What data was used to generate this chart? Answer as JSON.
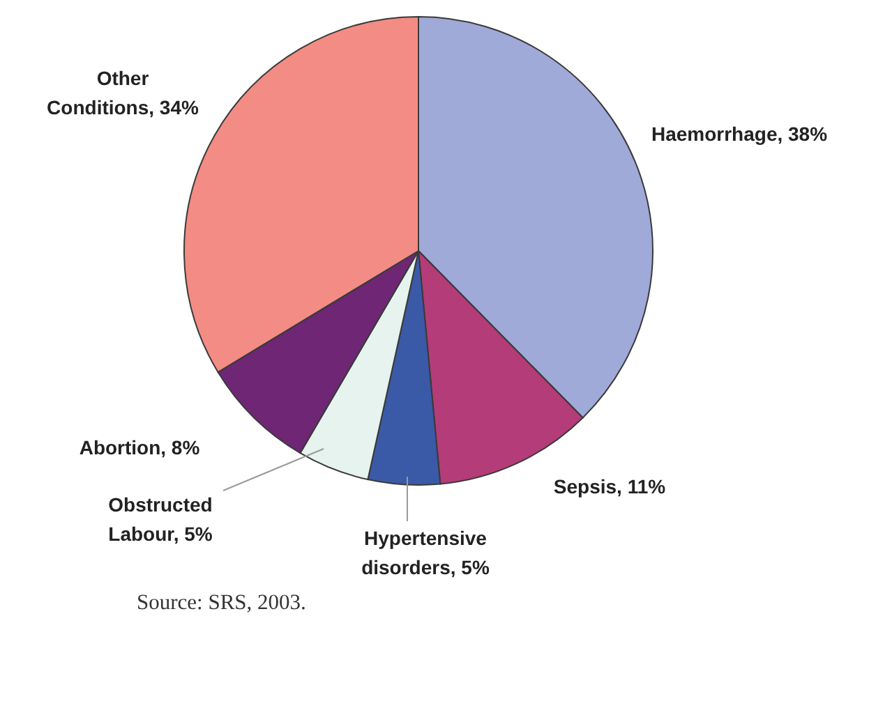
{
  "chart_data": {
    "type": "pie",
    "categories": [
      "Haemorrhage",
      "Sepsis",
      "Hypertensive disorders",
      "Obstructed Labour",
      "Abortion",
      "Other Conditions"
    ],
    "values": [
      38,
      11,
      5,
      5,
      8,
      34
    ],
    "value_labels": [
      "38%",
      "11%",
      "5%",
      "5%",
      "8%",
      "34%"
    ],
    "colors": [
      "#a0aad9",
      "#b43c78",
      "#3a5aa8",
      "#e6f3ef",
      "#6e2675",
      "#f38c84"
    ],
    "annotations": [
      "Source: SRS, 2003."
    ]
  }
}
